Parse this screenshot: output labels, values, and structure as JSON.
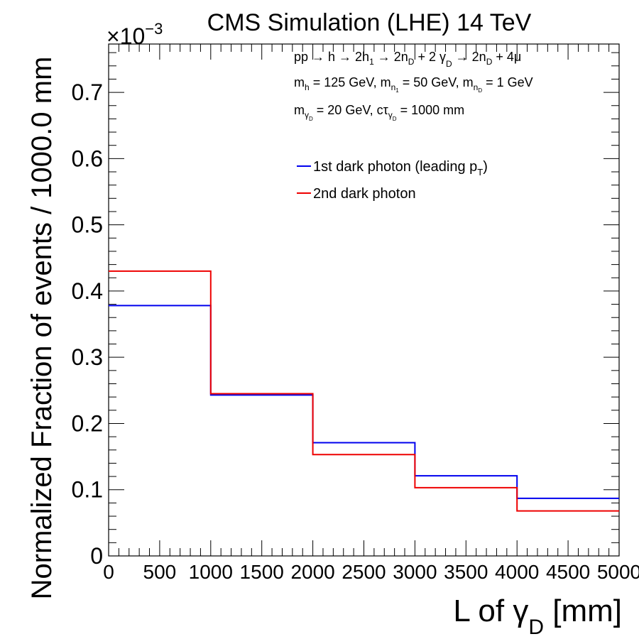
{
  "chart_data": {
    "type": "line",
    "title": "CMS Simulation (LHE) 14 TeV",
    "exponent_label": "×10",
    "exponent_power": "−3",
    "xlabel": {
      "main": "L of γ",
      "sub": "D",
      "unit": " [mm]"
    },
    "ylabel": "Normalized Fraction of events / 1000.0 mm",
    "xlim": [
      0,
      5000
    ],
    "ylim": [
      0,
      0.773
    ],
    "x_ticks": [
      0,
      500,
      1000,
      1500,
      2000,
      2500,
      3000,
      3500,
      4000,
      4500,
      5000
    ],
    "x_tick_labels": [
      "0",
      "500",
      "1000",
      "1500",
      "2000",
      "2500",
      "3000",
      "3500",
      "4000",
      "4500",
      "5000"
    ],
    "y_ticks": [
      0,
      0.1,
      0.2,
      0.3,
      0.4,
      0.5,
      0.6,
      0.7
    ],
    "y_tick_labels": [
      "0",
      "0.1",
      "0.2",
      "0.3",
      "0.4",
      "0.5",
      "0.6",
      "0.7"
    ],
    "bin_edges": [
      0,
      1000,
      2000,
      3000,
      4000,
      5000
    ],
    "series": [
      {
        "name": "1st dark photon (leading p",
        "name_sub": "T",
        "name_suffix": ")",
        "color": "#0000ee",
        "values": [
          0.378,
          0.243,
          0.171,
          0.121,
          0.087
        ]
      },
      {
        "name": "2nd dark photon",
        "name_sub": "",
        "name_suffix": "",
        "color": "#ee0000",
        "values": [
          0.43,
          0.245,
          0.153,
          0.103,
          0.068
        ]
      }
    ],
    "legend_position": "top-right",
    "annotations": {
      "line1": {
        "a": "pp → h → 2h",
        "a_sub": "1",
        "b": " → 2n",
        "b_sub": "D",
        "c": " + 2 γ",
        "c_sub": "D",
        "d": " → 2n",
        "d_sub": "D",
        "e": " + 4μ"
      },
      "line2": {
        "a": "m",
        "a_sub": "h",
        "b": " = 125 GeV, m",
        "b_sub": "n",
        "b_subsub": "1",
        "c": " = 50 GeV, m",
        "c_sub": "n",
        "c_subsub": "D",
        "d": " = 1 GeV"
      },
      "line3": {
        "a": "m",
        "a_sub": "γ",
        "a_subsub": "D",
        "b": " = 20 GeV, cτ",
        "b_sub": "γ",
        "b_subsub": "D",
        "c": " = 1000 mm"
      }
    }
  }
}
